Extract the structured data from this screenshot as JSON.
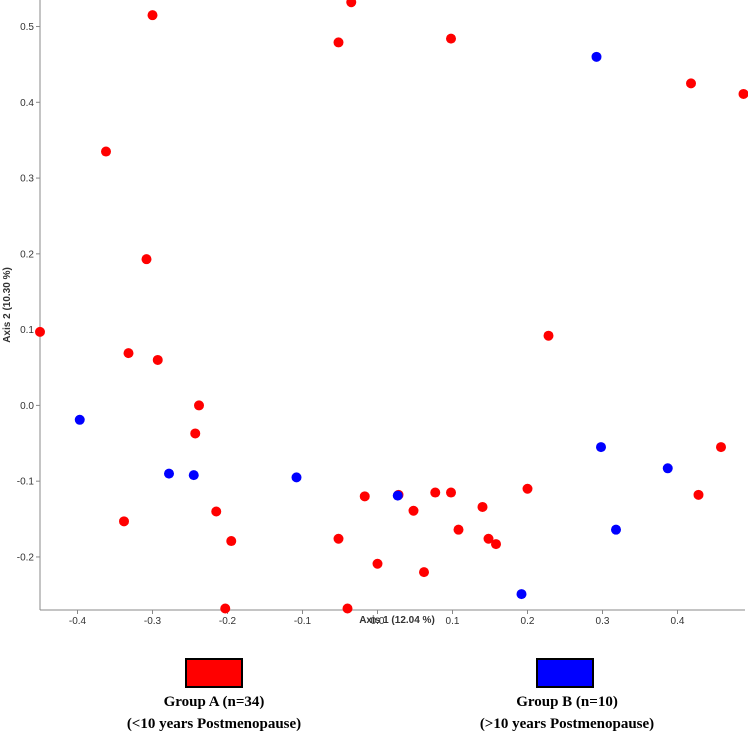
{
  "chart_data": {
    "type": "scatter",
    "xlabel": "Axis 1 (12.04 %)",
    "ylabel": "Axis 2 (10.30 %)",
    "xlim": [
      -0.45,
      0.49
    ],
    "ylim": [
      -0.27,
      0.535
    ],
    "x_ticks": [
      -0.4,
      -0.3,
      -0.2,
      -0.1,
      0.0,
      0.1,
      0.2,
      0.3,
      0.4
    ],
    "x_tick_labels": [
      "-0.4",
      "-0.3",
      "-0.2",
      "-0.1",
      "0.0",
      "0.1",
      "0.2",
      "0.3",
      "0.4"
    ],
    "y_ticks": [
      -0.2,
      -0.1,
      0.0,
      0.1,
      0.2,
      0.3,
      0.4,
      0.5
    ],
    "y_tick_labels": [
      "-0.2",
      "-0.1",
      "0.0",
      "0.1",
      "0.2",
      "0.3",
      "0.4",
      "0.5"
    ],
    "grid": false,
    "legend_placement": "bottom",
    "series": [
      {
        "name": "Group A (n=34)",
        "sublabel": "(<10 years Postmenopause)",
        "color": "#ff0000",
        "points": [
          [
            -0.3,
            0.515
          ],
          [
            -0.035,
            0.532
          ],
          [
            -0.052,
            0.479
          ],
          [
            0.098,
            0.484
          ],
          [
            -0.362,
            0.335
          ],
          [
            0.418,
            0.425
          ],
          [
            0.488,
            0.411
          ],
          [
            -0.308,
            0.193
          ],
          [
            -0.45,
            0.097
          ],
          [
            -0.332,
            0.069
          ],
          [
            0.228,
            0.092
          ],
          [
            -0.293,
            0.06
          ],
          [
            -0.238,
            0.0
          ],
          [
            -0.243,
            -0.037
          ],
          [
            0.458,
            -0.055
          ],
          [
            -0.338,
            -0.153
          ],
          [
            -0.215,
            -0.14
          ],
          [
            -0.195,
            -0.179
          ],
          [
            -0.203,
            -0.268
          ],
          [
            -0.052,
            -0.176
          ],
          [
            -0.04,
            -0.268
          ],
          [
            -0.017,
            -0.12
          ],
          [
            0.0,
            -0.209
          ],
          [
            0.028,
            -0.118
          ],
          [
            0.048,
            -0.139
          ],
          [
            0.062,
            -0.22
          ],
          [
            0.077,
            -0.115
          ],
          [
            0.098,
            -0.115
          ],
          [
            0.108,
            -0.164
          ],
          [
            0.14,
            -0.134
          ],
          [
            0.148,
            -0.176
          ],
          [
            0.158,
            -0.183
          ],
          [
            0.2,
            -0.11
          ],
          [
            0.428,
            -0.118
          ]
        ]
      },
      {
        "name": "Group B (n=10)",
        "sublabel": "(>10 years Postmenopause)",
        "color": "#0000ff",
        "points": [
          [
            0.292,
            0.46
          ],
          [
            -0.397,
            -0.019
          ],
          [
            -0.278,
            -0.09
          ],
          [
            -0.245,
            -0.092
          ],
          [
            -0.108,
            -0.095
          ],
          [
            0.027,
            -0.119
          ],
          [
            0.298,
            -0.055
          ],
          [
            0.387,
            -0.083
          ],
          [
            0.318,
            -0.164
          ],
          [
            0.192,
            -0.249
          ]
        ]
      }
    ]
  }
}
